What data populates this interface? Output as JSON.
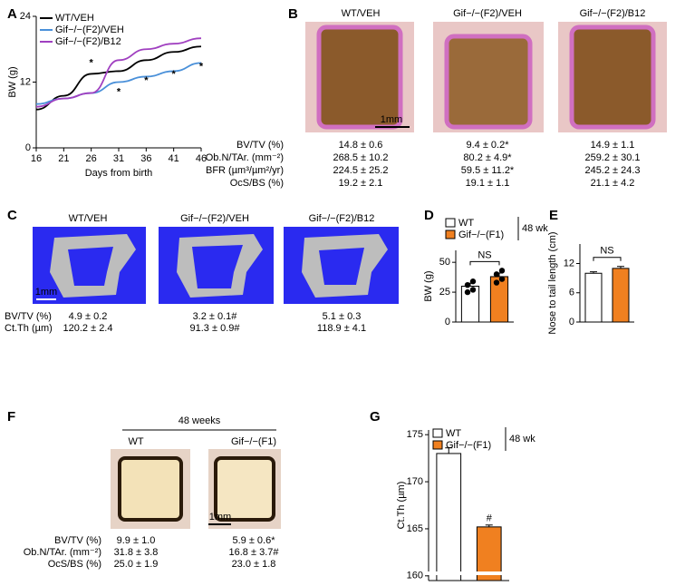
{
  "panel_labels": [
    "A",
    "B",
    "C",
    "D",
    "E",
    "F",
    "G"
  ],
  "chart_data": [
    {
      "type": "line",
      "x": [
        16,
        21,
        26,
        31,
        36,
        41,
        46
      ],
      "xlim": [
        16,
        46
      ],
      "xticks": [
        16,
        21,
        26,
        31,
        36,
        41,
        46
      ],
      "ylim": [
        0,
        24
      ],
      "yticks": [
        0,
        12,
        24
      ],
      "xlabel": "Days from birth",
      "ylabel": "BW (g)",
      "series": [
        {
          "name": "WT/VEH",
          "color": "#000000",
          "values": [
            7,
            9.5,
            13.5,
            14,
            16,
            17.5,
            18.5
          ]
        },
        {
          "name": "Gif−/−(F2)/VEH",
          "color": "#4a90d9",
          "values": [
            8,
            9,
            10,
            12,
            13,
            14,
            15.5
          ]
        },
        {
          "name": "Gif−/−(F2)/B12",
          "color": "#a040c0",
          "values": [
            7.5,
            9,
            10,
            16,
            18,
            19,
            20
          ]
        }
      ],
      "annotations": [
        {
          "text": "*",
          "x": 26,
          "y": 15.5
        },
        {
          "text": "*",
          "x": 31,
          "y": 10.2
        },
        {
          "text": "*",
          "x": 36,
          "y": 12.2
        },
        {
          "text": "*",
          "x": 41,
          "y": 13.4
        },
        {
          "text": "*",
          "x": 46,
          "y": 14.8
        }
      ]
    },
    {
      "type": "bar",
      "categories": [
        "WT",
        "Gif−/−(F1)"
      ],
      "colors": [
        "#ffffff",
        "#f08020"
      ],
      "values": [
        30,
        38
      ],
      "errors": [
        2.5,
        3
      ],
      "points": [
        [
          25,
          27,
          31,
          34
        ],
        [
          33,
          36,
          40,
          43
        ]
      ],
      "ylim": [
        0,
        60
      ],
      "yticks": [
        0,
        25,
        50
      ],
      "ylabel": "BW (g)",
      "legend_note": "48 wk",
      "bracket_label": "NS"
    },
    {
      "type": "bar",
      "categories": [
        "WT",
        "Gif−/−(F1)"
      ],
      "colors": [
        "#ffffff",
        "#f08020"
      ],
      "values": [
        10,
        11
      ],
      "errors": [
        0.3,
        0.4
      ],
      "ylim": [
        0,
        16
      ],
      "yticks": [
        0,
        6,
        12
      ],
      "ylabel": "Nose to tail length (cm)",
      "bracket_label": "NS"
    },
    {
      "type": "bar",
      "categories": [
        "WT",
        "Gif−/−(F1)"
      ],
      "colors": [
        "#ffffff",
        "#f08020"
      ],
      "values": [
        173,
        165.2
      ],
      "errors": [
        0.6,
        0.2
      ],
      "ylim": [
        159.5,
        175.5
      ],
      "yticks": [
        160,
        165,
        170,
        175
      ],
      "ylabel": "Ct.Th (µm)",
      "legend_note": "48 wk",
      "annotations": [
        {
          "text": "#",
          "category": 1
        }
      ]
    }
  ],
  "panel_B": {
    "columns": [
      "WT/VEH",
      "Gif−/−(F2)/VEH",
      "Gif−/−(F2)/B12"
    ],
    "scale_bar": "1mm",
    "row_labels": [
      "BV/TV (%)",
      "Ob.N/TAr. (mm⁻²)",
      "BFR (µm³/µm²/yr)",
      "OcS/BS (%)"
    ],
    "rows": [
      [
        "14.8 ± 0.6",
        "9.4 ± 0.2*",
        "14.9 ± 1.1"
      ],
      [
        "268.5 ± 10.2",
        "80.2 ± 4.9*",
        "259.2 ± 30.1"
      ],
      [
        "224.5 ± 25.2",
        "59.5 ± 11.2*",
        "245.2 ± 24.3"
      ],
      [
        "19.2 ± 2.1",
        "19.1 ± 1.1",
        "21.1 ± 4.2"
      ]
    ]
  },
  "panel_C": {
    "columns": [
      "WT/VEH",
      "Gif−/−(F2)/VEH",
      "Gif−/−(F2)/B12"
    ],
    "scale_bar": "1mm",
    "row_labels": [
      "BV/TV (%)",
      "Ct.Th (µm)"
    ],
    "rows": [
      [
        "4.9 ± 0.2",
        "3.2 ± 0.1#",
        "5.1 ± 0.3"
      ],
      [
        "120.2 ± 2.4",
        "91.3 ± 0.9#",
        "118.9 ± 4.1"
      ]
    ]
  },
  "panel_F": {
    "header": "48 weeks",
    "columns": [
      "WT",
      "Gif−/−(F1)"
    ],
    "scale_bar": "1mm",
    "row_labels": [
      "BV/TV (%)",
      "Ob.N/TAr. (mm⁻²)",
      "OcS/BS (%)"
    ],
    "rows": [
      [
        "9.9 ± 1.0",
        "5.9 ± 0.6*"
      ],
      [
        "31.8 ± 3.8",
        "16.8 ± 3.7#"
      ],
      [
        "25.0 ± 1.9",
        "23.0 ± 1.8"
      ]
    ]
  }
}
